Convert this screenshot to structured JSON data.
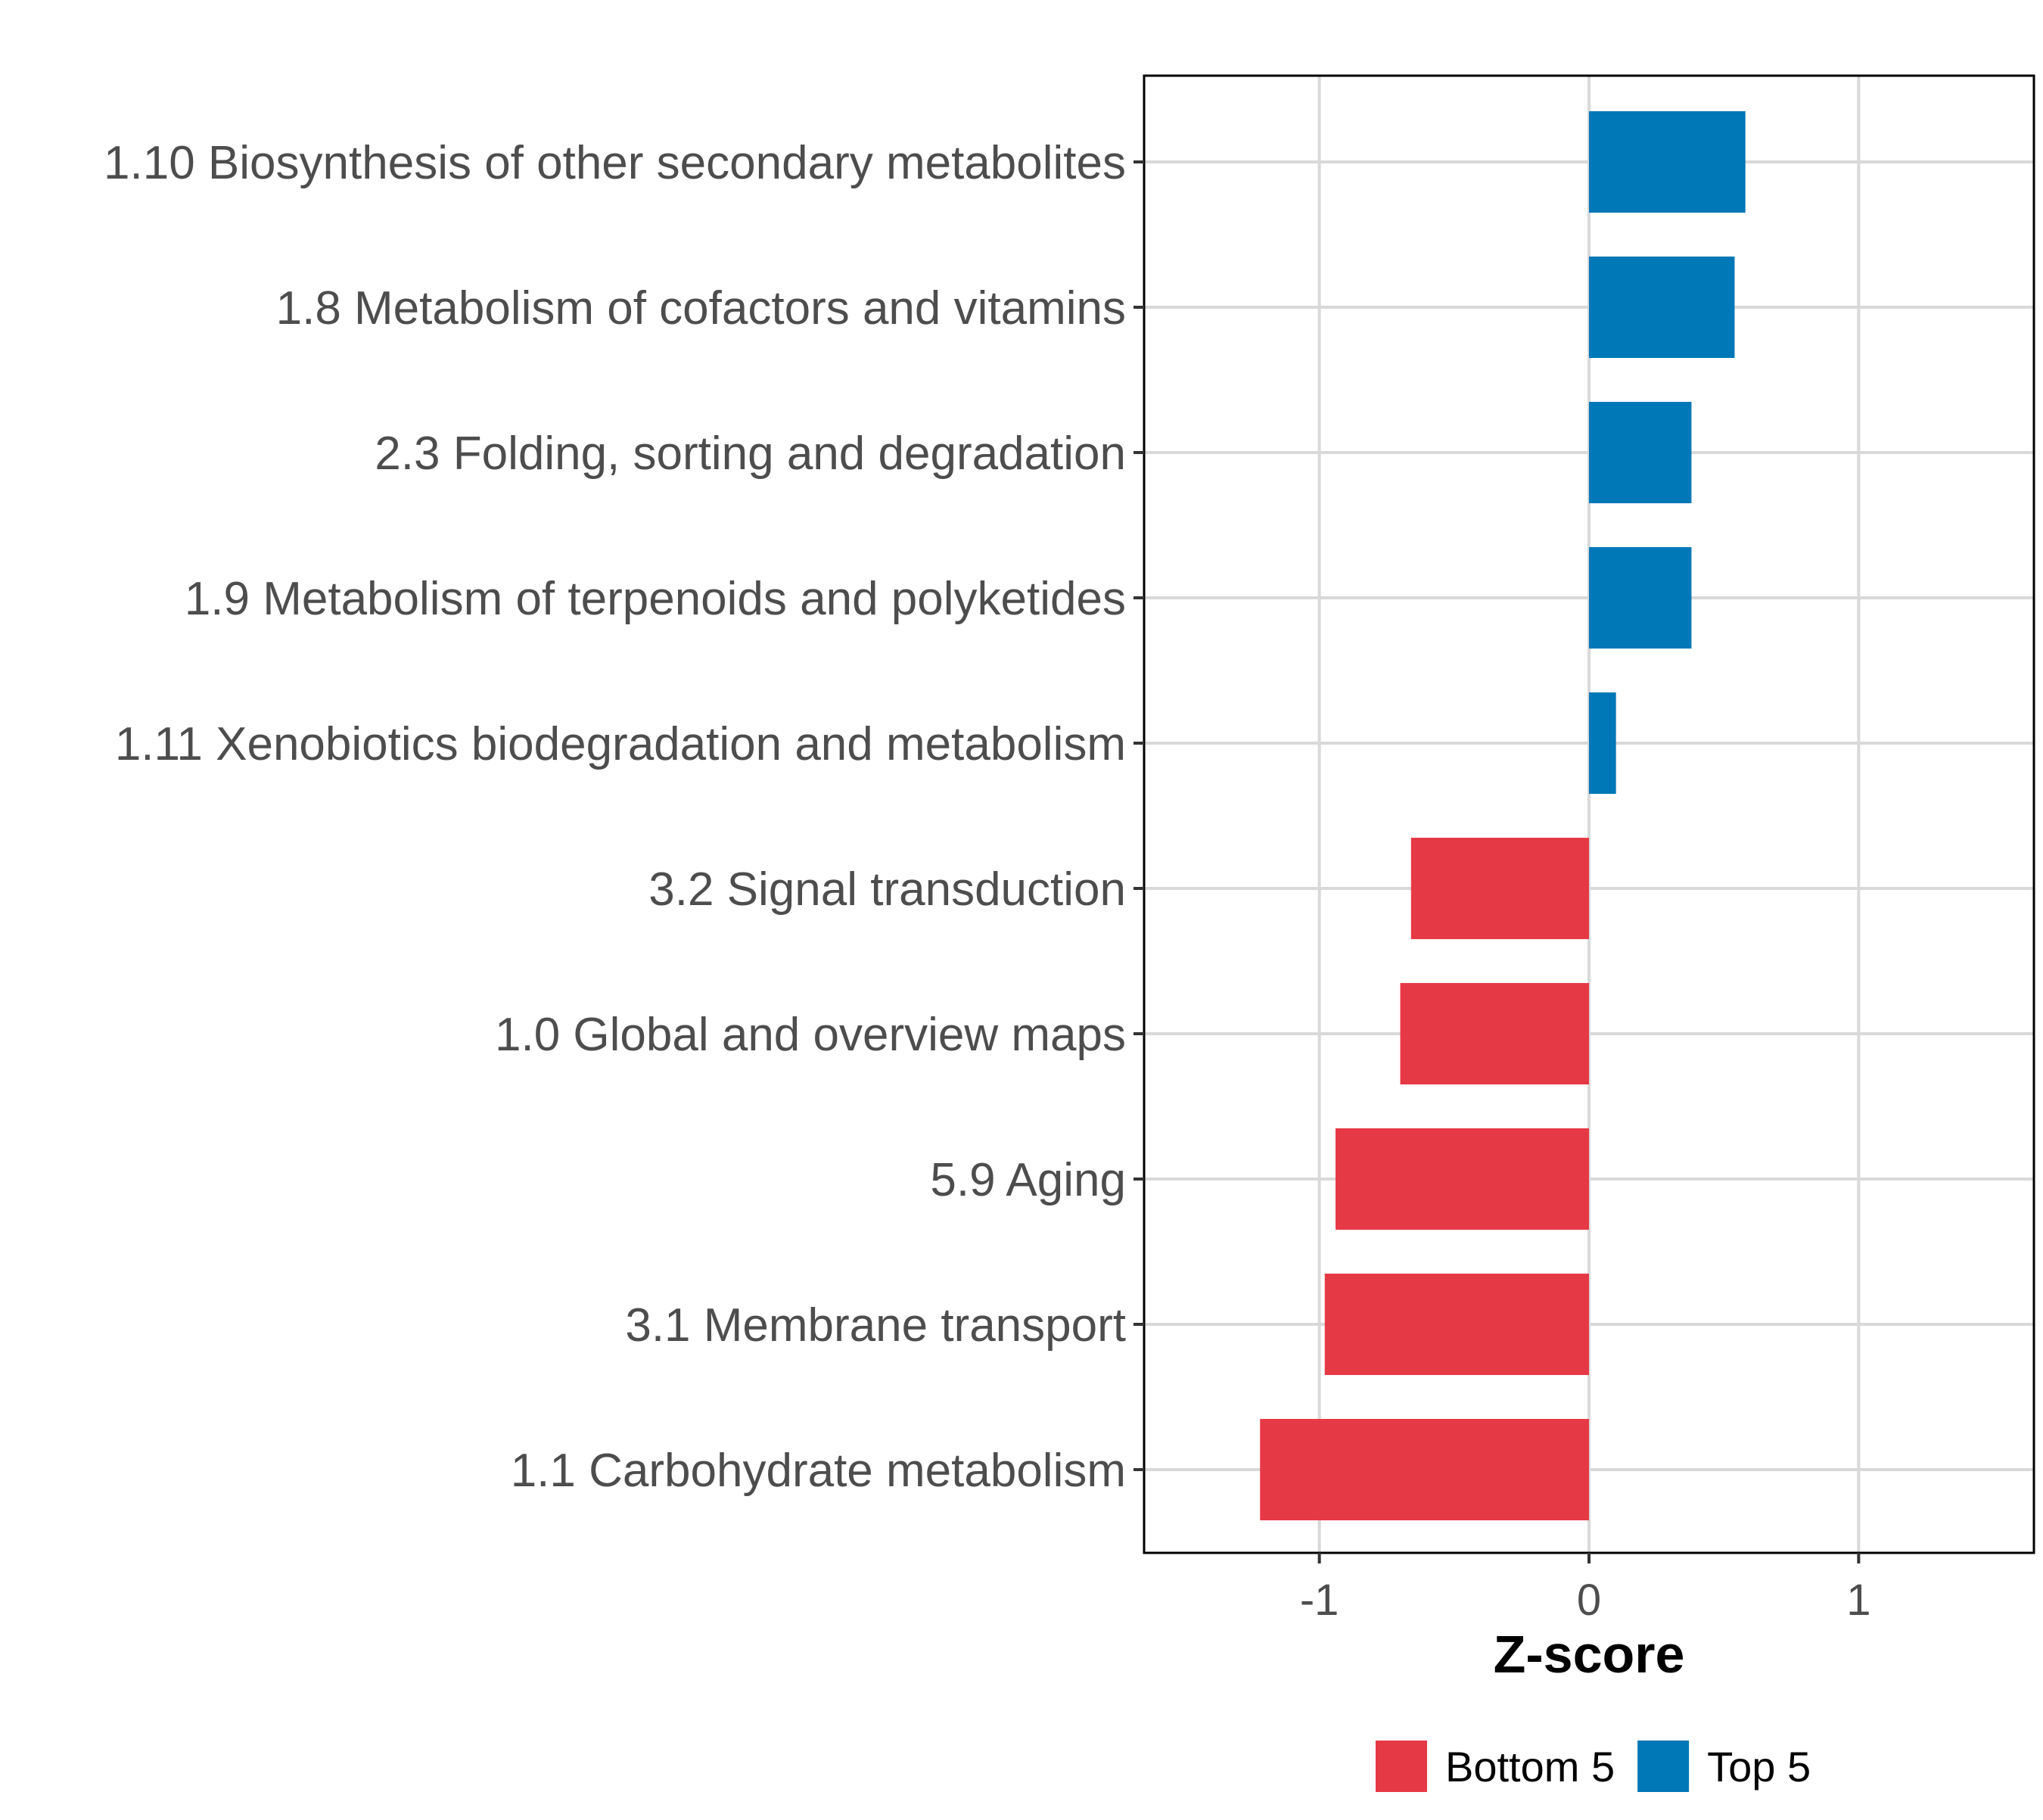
{
  "chart_data": {
    "type": "bar",
    "orientation": "horizontal",
    "title": "",
    "xlabel": "Z-score",
    "ylabel": "",
    "xlim": [
      -1.65,
      1.65
    ],
    "xticks": [
      -1,
      0,
      1
    ],
    "tick_labels": [
      "-1",
      "0",
      "1"
    ],
    "grid": true,
    "legend_position": "bottom",
    "legend": [
      {
        "name": "Bottom 5",
        "color": "#E63946"
      },
      {
        "name": "Top 5",
        "color": "#0077B6"
      }
    ],
    "categories": [
      "1.10 Biosynthesis of other secondary metabolites",
      "1.8 Metabolism of cofactors and vitamins",
      "2.3 Folding, sorting and degradation",
      "1.9 Metabolism of terpenoids and polyketides",
      "1.11 Xenobiotics biodegradation and metabolism",
      "3.2 Signal transduction",
      "1.0 Global and overview maps",
      "5.9 Aging",
      "3.1 Membrane transport",
      "1.1 Carbohydrate metabolism"
    ],
    "values": [
      0.58,
      0.54,
      0.38,
      0.38,
      0.1,
      -0.66,
      -0.7,
      -0.94,
      -0.98,
      -1.22
    ],
    "groups": [
      "Top 5",
      "Top 5",
      "Top 5",
      "Top 5",
      "Top 5",
      "Bottom 5",
      "Bottom 5",
      "Bottom 5",
      "Bottom 5",
      "Bottom 5"
    ]
  }
}
